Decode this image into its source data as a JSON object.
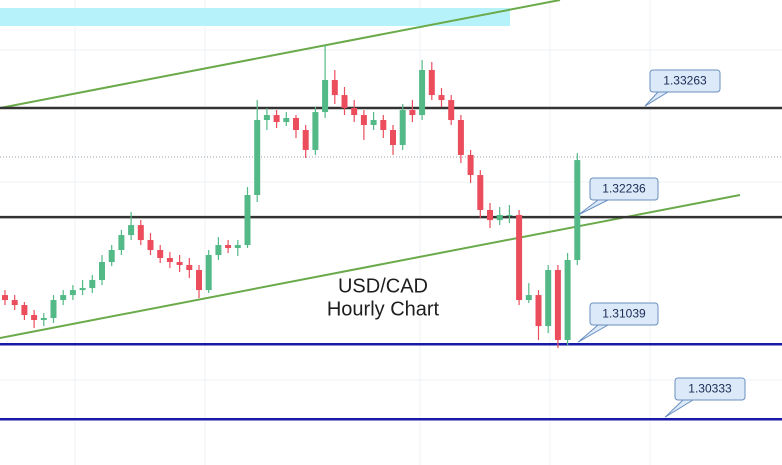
{
  "chart_data": {
    "type": "candlestick",
    "up_color": "#53b987",
    "down_color": "#eb4d5c",
    "ylim": [
      1.29902,
      1.3428
    ],
    "open": [
      1.31502,
      1.31455,
      1.31408,
      1.31314,
      1.31267,
      1.31286,
      1.31455,
      1.31502,
      1.31549,
      1.31568,
      1.31644,
      1.31813,
      1.31926,
      1.32067,
      1.32161,
      1.3202,
      1.31926,
      1.31851,
      1.31813,
      1.31785,
      1.31738,
      1.31549,
      1.31879,
      1.31973,
      1.31945,
      1.31973,
      1.32444,
      1.3315,
      1.33197,
      1.33131,
      1.33169,
      1.33056,
      1.32868,
      1.33225,
      1.33527,
      1.33385,
      1.33263,
      1.33197,
      1.33103,
      1.3315,
      1.33056,
      1.32915,
      1.33244,
      1.33197,
      1.33621,
      1.33385,
      1.33338,
      1.3315,
      1.32821,
      1.32632,
      1.32303,
      1.32208,
      1.32256,
      1.32256,
      1.31455,
      1.31502,
      1.3121,
      1.31738,
      1.31079,
      1.31832
    ],
    "high": [
      1.31549,
      1.31502,
      1.31436,
      1.31361,
      1.31333,
      1.31502,
      1.31549,
      1.31596,
      1.31644,
      1.31691,
      1.31879,
      1.31973,
      1.32114,
      1.32284,
      1.32208,
      1.32086,
      1.31973,
      1.31907,
      1.31879,
      1.31851,
      1.31785,
      1.31926,
      1.32048,
      1.3202,
      1.3202,
      1.32519,
      1.33338,
      1.33263,
      1.33244,
      1.33225,
      1.33197,
      1.33103,
      1.33272,
      1.33856,
      1.33621,
      1.33461,
      1.33338,
      1.33244,
      1.33225,
      1.33197,
      1.33103,
      1.33301,
      1.33338,
      1.33715,
      1.33696,
      1.33451,
      1.33385,
      1.33197,
      1.32868,
      1.32679,
      1.32369,
      1.32331,
      1.3235,
      1.32303,
      1.31615,
      1.31549,
      1.31785,
      1.31785,
      1.31898,
      1.32839
    ],
    "low": [
      1.31408,
      1.31361,
      1.31267,
      1.31192,
      1.3121,
      1.31239,
      1.31408,
      1.31455,
      1.31502,
      1.31521,
      1.31596,
      1.31775,
      1.31879,
      1.3202,
      1.31973,
      1.31879,
      1.31804,
      1.31757,
      1.31719,
      1.31662,
      1.31474,
      1.31521,
      1.31832,
      1.31898,
      1.31869,
      1.31945,
      1.32378,
      1.33056,
      1.33075,
      1.33094,
      1.32981,
      1.32792,
      1.32821,
      1.33169,
      1.33301,
      1.33197,
      1.33131,
      1.32962,
      1.33056,
      1.32981,
      1.32821,
      1.32868,
      1.33131,
      1.3315,
      1.33338,
      1.33272,
      1.33103,
      1.32745,
      1.32557,
      1.32227,
      1.32133,
      1.32161,
      1.3218,
      1.31408,
      1.31427,
      1.31079,
      1.31144,
      1.31003,
      1.31031,
      1.31785
    ],
    "close": [
      1.31455,
      1.31408,
      1.31314,
      1.31267,
      1.31286,
      1.31455,
      1.31502,
      1.31549,
      1.31568,
      1.31644,
      1.31813,
      1.31926,
      1.32067,
      1.32161,
      1.3202,
      1.31926,
      1.31851,
      1.31813,
      1.31785,
      1.31738,
      1.31549,
      1.31879,
      1.31973,
      1.31945,
      1.31973,
      1.32444,
      1.3315,
      1.33197,
      1.33131,
      1.33169,
      1.33056,
      1.32868,
      1.33225,
      1.33527,
      1.33385,
      1.33263,
      1.33197,
      1.33103,
      1.3315,
      1.33056,
      1.32915,
      1.33244,
      1.33197,
      1.33621,
      1.33385,
      1.33338,
      1.3315,
      1.32821,
      1.32632,
      1.32303,
      1.32208,
      1.32256,
      1.32256,
      1.31455,
      1.31502,
      1.3121,
      1.31738,
      1.31079,
      1.31832,
      1.32773
    ],
    "levels": [
      {
        "value": 1.33263,
        "color": "#333333"
      },
      {
        "value": 1.32236,
        "color": "#333333"
      },
      {
        "value": 1.31039,
        "color": "#1a1aa8"
      },
      {
        "value": 1.30333,
        "color": "#1a1aa8"
      }
    ],
    "annotation": [
      "USD/CAD",
      "Hourly Chart"
    ]
  }
}
